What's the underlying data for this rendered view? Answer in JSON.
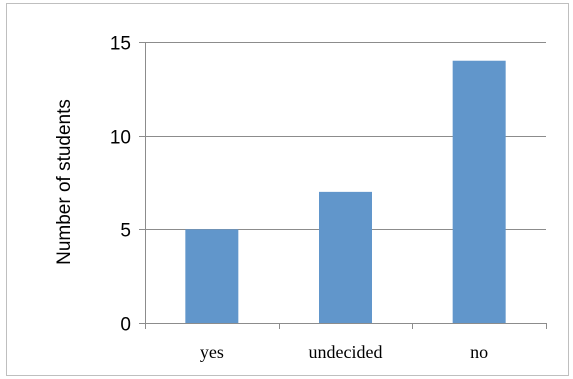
{
  "chart_data": {
    "type": "bar",
    "title": "",
    "xlabel": "",
    "ylabel": "Number of students",
    "categories": [
      "yes",
      "undecided",
      "no"
    ],
    "values": [
      5,
      7,
      14
    ],
    "ylim": [
      0,
      15
    ],
    "yticks": [
      0,
      5,
      10,
      15
    ],
    "grid": true,
    "legend": "none",
    "bar_color": "#6196CB",
    "grid_color": "#8C8C8C"
  }
}
